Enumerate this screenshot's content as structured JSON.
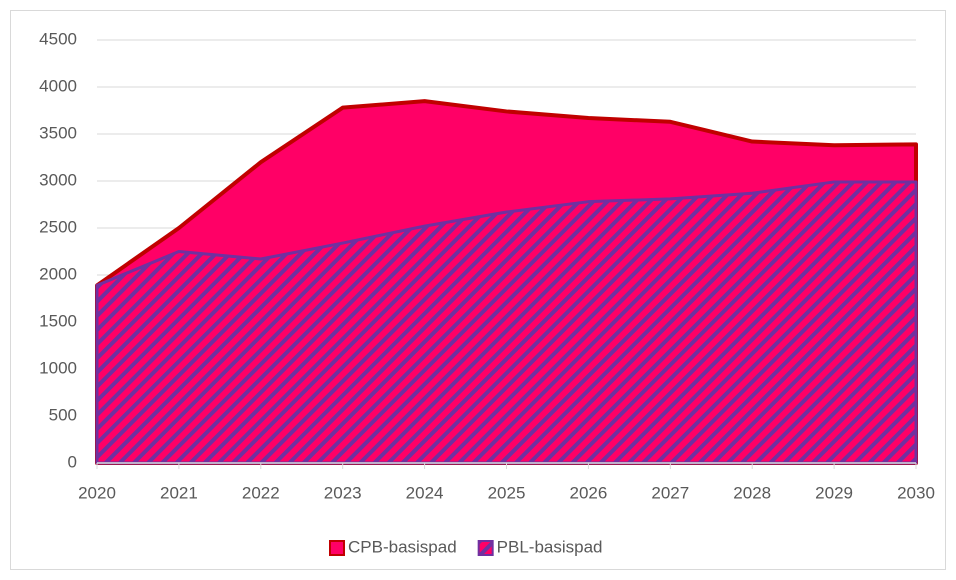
{
  "chart_data": {
    "type": "area",
    "categories": [
      "2020",
      "2021",
      "2022",
      "2023",
      "2024",
      "2025",
      "2026",
      "2027",
      "2028",
      "2029",
      "2030"
    ],
    "series": [
      {
        "name": "CPB-basispad",
        "color": "#ff0066",
        "line_color": "#c00000",
        "values": [
          1890,
          2500,
          3200,
          3780,
          3850,
          3740,
          3670,
          3630,
          3420,
          3380,
          3390
        ]
      },
      {
        "name": "PBL-basispad",
        "color": "#7030a0",
        "hatch": true,
        "values": [
          1890,
          2250,
          2170,
          2340,
          2520,
          2670,
          2780,
          2810,
          2870,
          2990,
          2990
        ]
      }
    ],
    "ylim": [
      0,
      4500
    ],
    "yticks": [
      0,
      500,
      1000,
      1500,
      2000,
      2500,
      3000,
      3500,
      4000,
      4500
    ],
    "grid": true,
    "legend": "bottom"
  }
}
